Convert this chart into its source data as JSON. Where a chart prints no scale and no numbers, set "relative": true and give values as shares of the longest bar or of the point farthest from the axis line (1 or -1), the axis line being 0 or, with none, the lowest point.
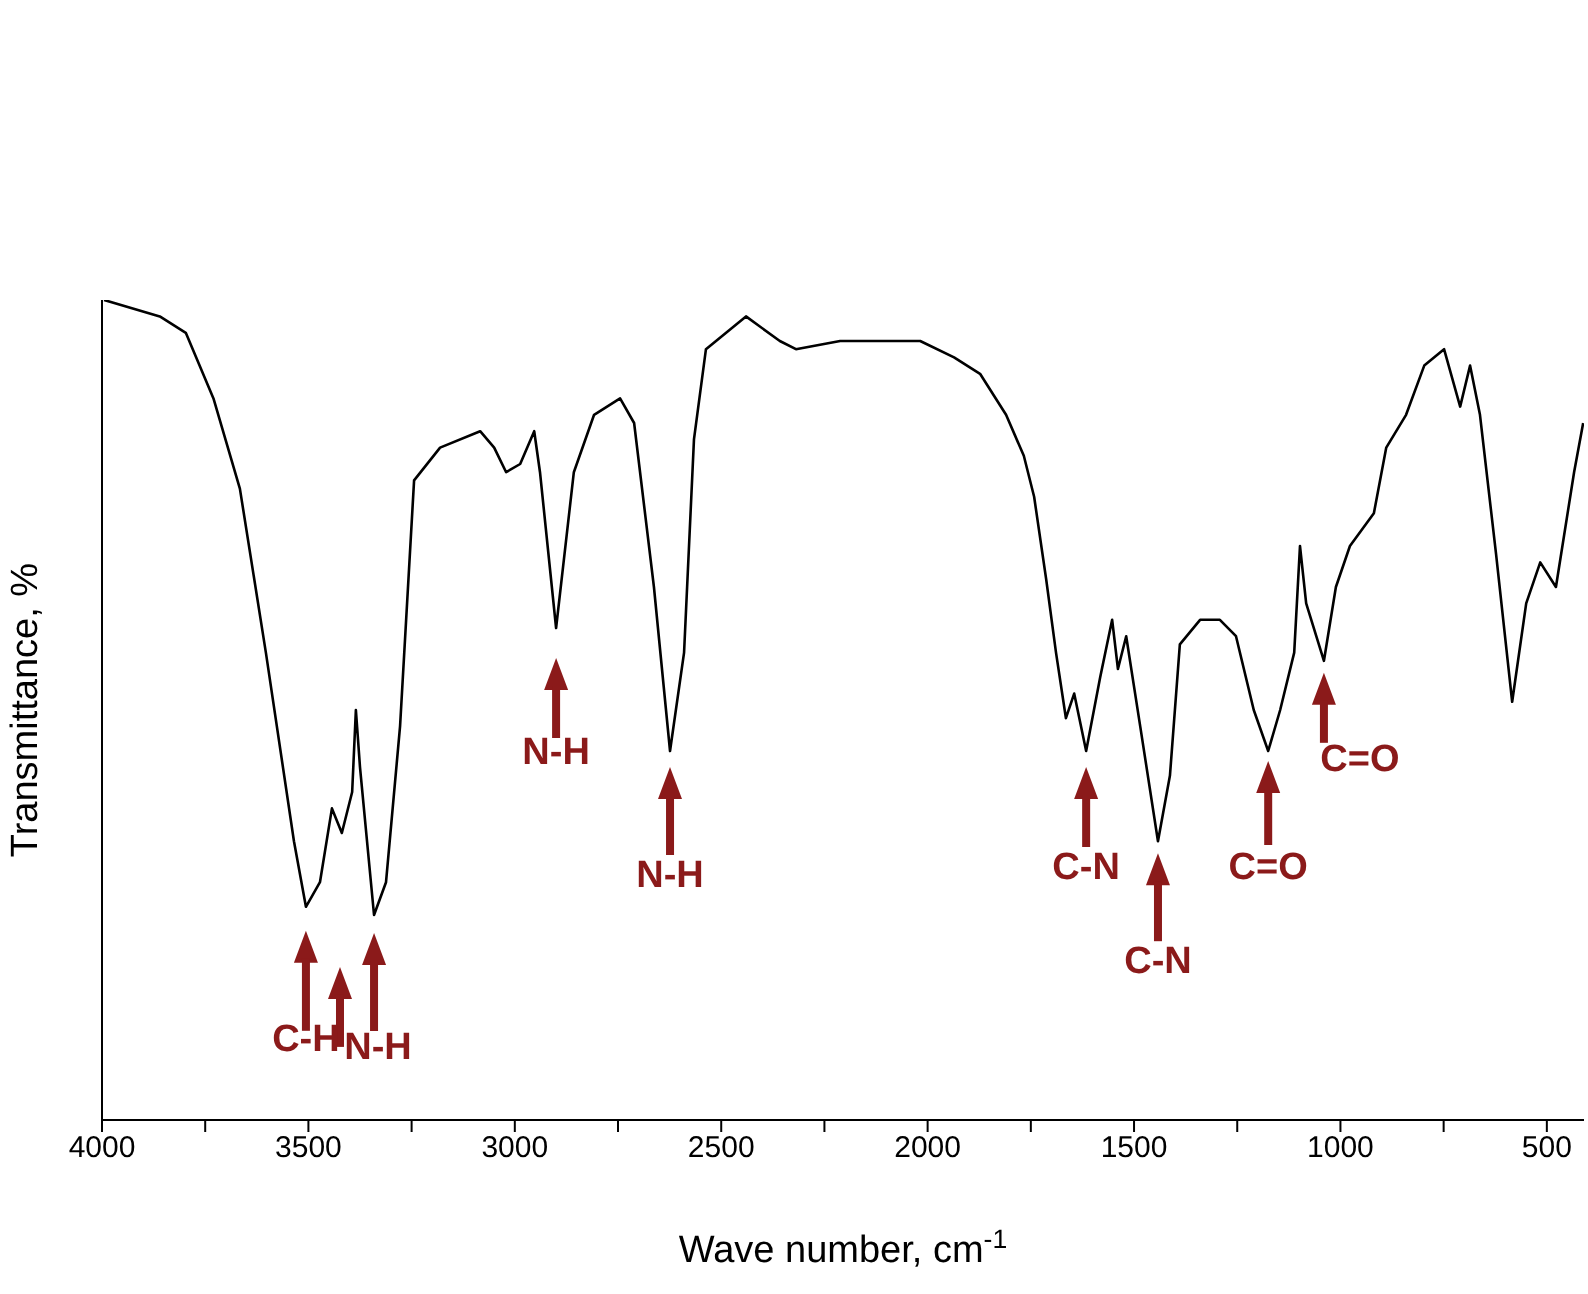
{
  "chart_data": {
    "type": "line",
    "relative": true,
    "xlabel": "Wave number, cm$^{-1}$",
    "ylabel": "Transmittance, %",
    "xlim": [
      4000,
      410
    ],
    "xticks": [
      4000,
      {
        "value": 3750,
        "label": null
      },
      3500,
      {
        "value": 3250,
        "label": null
      },
      3000,
      {
        "value": 2750,
        "label": null
      },
      2500,
      {
        "value": 2250,
        "label": null
      },
      2000,
      {
        "value": 1750,
        "label": null
      },
      1500,
      {
        "value": 1250,
        "label": null
      },
      1000,
      {
        "value": 750,
        "label": null
      },
      500
    ],
    "x": [
      3995,
      3860,
      3797,
      3730,
      3666,
      3603,
      3535,
      3506,
      3472,
      3443,
      3419,
      3394,
      3385,
      3375,
      3341,
      3312,
      3278,
      3244,
      3181,
      3084,
      3050,
      3021,
      2987,
      2953,
      2939,
      2900,
      2857,
      2808,
      2745,
      2711,
      2663,
      2624,
      2590,
      2566,
      2537,
      2440,
      2358,
      2319,
      2212,
      2149,
      2018,
      1936,
      1873,
      1810,
      1767,
      1742,
      1713,
      1689,
      1665,
      1645,
      1616,
      1582,
      1553,
      1539,
      1519,
      1485,
      1442,
      1413,
      1389,
      1340,
      1292,
      1253,
      1210,
      1175,
      1146,
      1112,
      1098,
      1083,
      1040,
      1011,
      977,
      919,
      889,
      841,
      797,
      749,
      710,
      686,
      662,
      623,
      584,
      550,
      516,
      478,
      434,
      412
    ],
    "series": [
      {
        "color": "#000000",
        "values": [
          1.0,
          0.98,
          0.96,
          0.88,
          0.77,
          0.57,
          0.34,
          0.26,
          0.29,
          0.38,
          0.35,
          0.4,
          0.5,
          0.43,
          0.25,
          0.29,
          0.48,
          0.78,
          0.82,
          0.84,
          0.82,
          0.79,
          0.8,
          0.84,
          0.79,
          0.6,
          0.79,
          0.86,
          0.88,
          0.85,
          0.65,
          0.45,
          0.57,
          0.83,
          0.94,
          0.98,
          0.95,
          0.94,
          0.95,
          0.95,
          0.95,
          0.93,
          0.91,
          0.86,
          0.81,
          0.76,
          0.66,
          0.57,
          0.49,
          0.52,
          0.45,
          0.54,
          0.61,
          0.55,
          0.59,
          0.48,
          0.34,
          0.42,
          0.58,
          0.61,
          0.61,
          0.59,
          0.5,
          0.45,
          0.5,
          0.57,
          0.7,
          0.63,
          0.56,
          0.65,
          0.7,
          0.74,
          0.82,
          0.86,
          0.92,
          0.94,
          0.87,
          0.92,
          0.86,
          0.69,
          0.51,
          0.63,
          0.68,
          0.65,
          0.79,
          0.85
        ]
      }
    ],
    "annotations": [
      {
        "text": "C-H",
        "x": 3506,
        "y": 0.26
      },
      {
        "text": "N-H",
        "x": 3341,
        "y": 0.25
      },
      {
        "text": "N-H",
        "x": 2900,
        "y": 0.6
      },
      {
        "text": "N-H",
        "x": 2624,
        "y": 0.45
      },
      {
        "text": "C-N",
        "x": 1616,
        "y": 0.45
      },
      {
        "text": "C-N",
        "x": 1442,
        "y": 0.34
      },
      {
        "text": "C=O",
        "x": 1175,
        "y": 0.45
      },
      {
        "text": "C=O",
        "x": 1040,
        "y": 0.56
      }
    ]
  }
}
